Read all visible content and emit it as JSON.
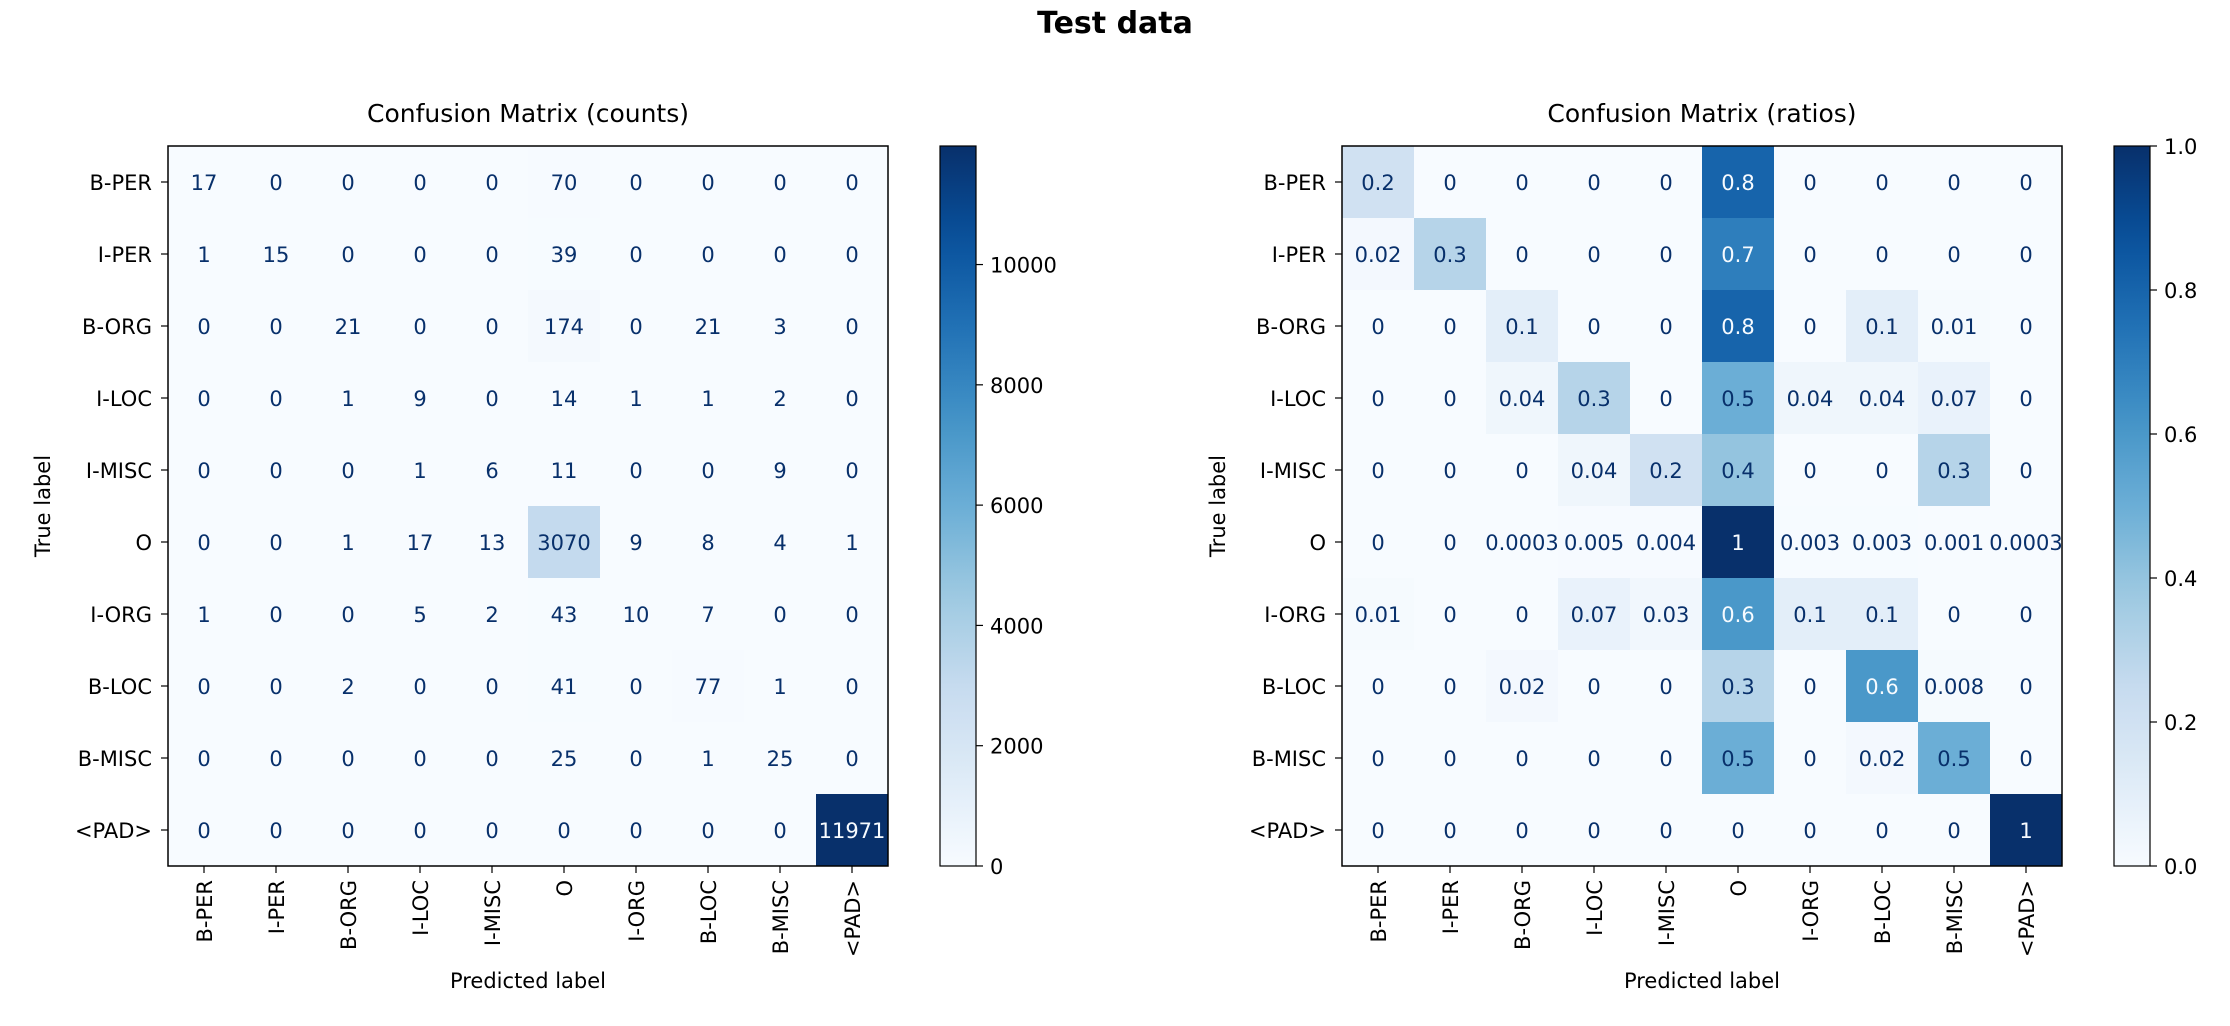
{
  "figure_title": "Test data",
  "chart_data": [
    {
      "type": "heatmap",
      "title": "Confusion Matrix (counts)",
      "xlabel": "Predicted label",
      "ylabel": "True label",
      "row_labels": [
        "B-PER",
        "I-PER",
        "B-ORG",
        "I-LOC",
        "I-MISC",
        "O",
        "I-ORG",
        "B-LOC",
        "B-MISC",
        "<PAD>"
      ],
      "col_labels": [
        "B-PER",
        "I-PER",
        "B-ORG",
        "I-LOC",
        "I-MISC",
        "O",
        "I-ORG",
        "B-LOC",
        "B-MISC",
        "<PAD>"
      ],
      "cell_labels": [
        [
          "17",
          "0",
          "0",
          "0",
          "0",
          "70",
          "0",
          "0",
          "0",
          "0"
        ],
        [
          "1",
          "15",
          "0",
          "0",
          "0",
          "39",
          "0",
          "0",
          "0",
          "0"
        ],
        [
          "0",
          "0",
          "21",
          "0",
          "0",
          "174",
          "0",
          "21",
          "3",
          "0"
        ],
        [
          "0",
          "0",
          "1",
          "9",
          "0",
          "14",
          "1",
          "1",
          "2",
          "0"
        ],
        [
          "0",
          "0",
          "0",
          "1",
          "6",
          "11",
          "0",
          "0",
          "9",
          "0"
        ],
        [
          "0",
          "0",
          "1",
          "17",
          "13",
          "3070",
          "9",
          "8",
          "4",
          "1"
        ],
        [
          "1",
          "0",
          "0",
          "5",
          "2",
          "43",
          "10",
          "7",
          "0",
          "0"
        ],
        [
          "0",
          "0",
          "2",
          "0",
          "0",
          "41",
          "0",
          "77",
          "1",
          "0"
        ],
        [
          "0",
          "0",
          "0",
          "0",
          "0",
          "25",
          "0",
          "1",
          "25",
          "0"
        ],
        [
          "0",
          "0",
          "0",
          "0",
          "0",
          "0",
          "0",
          "0",
          "0",
          "11971"
        ]
      ],
      "colorbar": {
        "colormap": "Blues",
        "range": [
          0,
          11971
        ],
        "ticks": [
          "0",
          "2000",
          "4000",
          "6000",
          "8000",
          "10000"
        ]
      }
    },
    {
      "type": "heatmap",
      "title": "Confusion Matrix (ratios)",
      "xlabel": "Predicted label",
      "ylabel": "True label",
      "row_labels": [
        "B-PER",
        "I-PER",
        "B-ORG",
        "I-LOC",
        "I-MISC",
        "O",
        "I-ORG",
        "B-LOC",
        "B-MISC",
        "<PAD>"
      ],
      "col_labels": [
        "B-PER",
        "I-PER",
        "B-ORG",
        "I-LOC",
        "I-MISC",
        "O",
        "I-ORG",
        "B-LOC",
        "B-MISC",
        "<PAD>"
      ],
      "cell_labels": [
        [
          "0.2",
          "0",
          "0",
          "0",
          "0",
          "0.8",
          "0",
          "0",
          "0",
          "0"
        ],
        [
          "0.02",
          "0.3",
          "0",
          "0",
          "0",
          "0.7",
          "0",
          "0",
          "0",
          "0"
        ],
        [
          "0",
          "0",
          "0.1",
          "0",
          "0",
          "0.8",
          "0",
          "0.1",
          "0.01",
          "0"
        ],
        [
          "0",
          "0",
          "0.04",
          "0.3",
          "0",
          "0.5",
          "0.04",
          "0.04",
          "0.07",
          "0"
        ],
        [
          "0",
          "0",
          "0",
          "0.04",
          "0.2",
          "0.4",
          "0",
          "0",
          "0.3",
          "0"
        ],
        [
          "0",
          "0",
          "0.0003",
          "0.005",
          "0.004",
          "1",
          "0.003",
          "0.003",
          "0.001",
          "0.0003"
        ],
        [
          "0.01",
          "0",
          "0",
          "0.07",
          "0.03",
          "0.6",
          "0.1",
          "0.1",
          "0",
          "0"
        ],
        [
          "0",
          "0",
          "0.02",
          "0",
          "0",
          "0.3",
          "0",
          "0.6",
          "0.008",
          "0"
        ],
        [
          "0",
          "0",
          "0",
          "0",
          "0",
          "0.5",
          "0",
          "0.02",
          "0.5",
          "0"
        ],
        [
          "0",
          "0",
          "0",
          "0",
          "0",
          "0",
          "0",
          "0",
          "0",
          "1"
        ]
      ],
      "colorbar": {
        "colormap": "Blues",
        "range": [
          0,
          1
        ],
        "ticks": [
          "0.0",
          "0.2",
          "0.4",
          "0.6",
          "0.8",
          "1.0"
        ]
      }
    }
  ]
}
